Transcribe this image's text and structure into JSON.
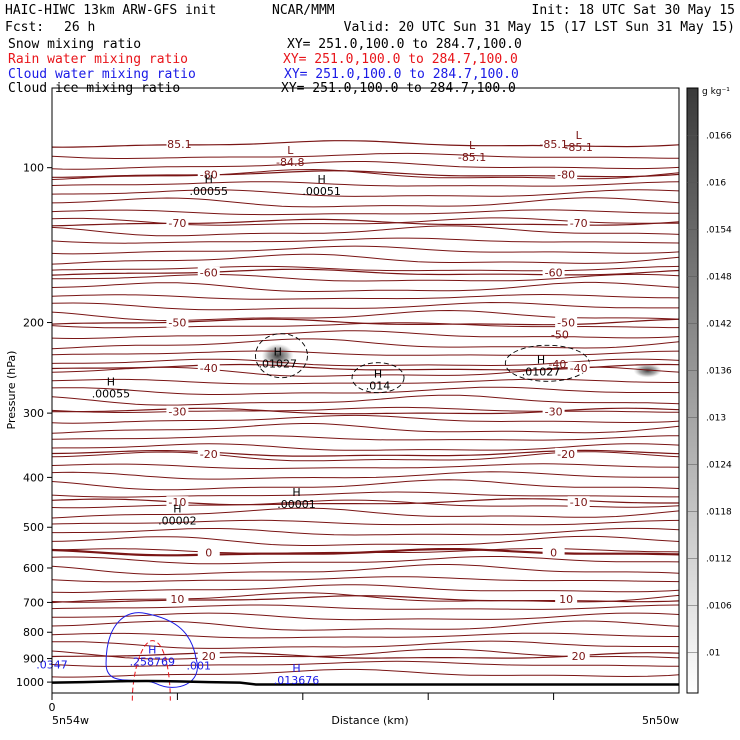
{
  "header": {
    "model_title": "HAIC-HIWC 13km ARW-GFS init",
    "org": "NCAR/MMM",
    "init": "Init: 18 UTC Sat 30 May 15",
    "fcst_label": "Fcst:",
    "fcst_value": "26 h",
    "valid": "Valid: 20 UTC Sun 31 May 15 (17 LST Sun 31 May 15)"
  },
  "fields": [
    {
      "name": "Snow mixing ratio",
      "xy": "XY= 251.0,100.0 to 284.7,100.0",
      "color": "#000000"
    },
    {
      "name": "Rain water mixing ratio",
      "xy": "XY= 251.0,100.0 to 284.7,100.0",
      "color": "#e8141a"
    },
    {
      "name": "Cloud water mixing ratio",
      "xy": "XY= 251.0,100.0 to 284.7,100.0",
      "color": "#1a1ae6"
    },
    {
      "name": "Cloud ice mixing ratio",
      "xy": "XY= 251.0,100.0 to 284.7,100.0",
      "color": "#000000"
    }
  ],
  "colors": {
    "isotherm": "#7a1515",
    "rain": "#e8141a",
    "cloud_water": "#1a1ae6",
    "ice": "#333333",
    "ground": "#000000"
  },
  "chart_data": {
    "type": "cross-section contour",
    "ylabel": "Pressure (hPa)",
    "xlabel": "Distance (km)",
    "y_scale": "log",
    "ylim": [
      1050,
      70
    ],
    "yticks": [
      100,
      200,
      300,
      400,
      500,
      600,
      700,
      800,
      900,
      1000
    ],
    "xlim": [
      0,
      5
    ],
    "xticks": [
      0,
      1,
      2,
      3,
      4
    ],
    "xtick_labels": [
      "0",
      "",
      "",
      "",
      ""
    ],
    "x_endpoints": {
      "left": "5n54w",
      "right": "5n50w"
    },
    "colorbar": {
      "units": "g kg⁻¹",
      "ticks": [
        ".01",
        ".0106",
        ".0112",
        ".0118",
        ".0124",
        ".013",
        ".0136",
        ".0142",
        ".0148",
        ".0154",
        ".016",
        ".0166"
      ],
      "min": 0.0097,
      "max": 0.0172
    },
    "temperature_contours": [
      {
        "label": "-85.1",
        "p": 90
      },
      {
        "label": "-80",
        "p": 103
      },
      {
        "label": "-70",
        "p": 128
      },
      {
        "label": "-60",
        "p": 160
      },
      {
        "label": "-50",
        "p": 200
      },
      {
        "label": "-40",
        "p": 245
      },
      {
        "label": "-30",
        "p": 298
      },
      {
        "label": "-20",
        "p": 360
      },
      {
        "label": "-10",
        "p": 447
      },
      {
        "label": "0",
        "p": 560
      },
      {
        "label": "10",
        "p": 690
      },
      {
        "label": "20",
        "p": 890
      }
    ],
    "extrema_labels": [
      {
        "letter": "L",
        "value": "-84.8",
        "x": 1.9,
        "p": 94,
        "color": "#7a1515"
      },
      {
        "letter": "L",
        "value": "-85.1",
        "x": 3.35,
        "p": 92,
        "color": "#7a1515"
      },
      {
        "letter": "L",
        "value": "-85.1",
        "x": 4.2,
        "p": 88,
        "color": "#7a1515"
      },
      {
        "letter": "H",
        "value": ".00055",
        "x": 1.25,
        "p": 107,
        "color": "#000000"
      },
      {
        "letter": "H",
        "value": ".00051",
        "x": 2.15,
        "p": 107,
        "color": "#000000"
      },
      {
        "letter": "H",
        "value": ".00055",
        "x": 0.47,
        "p": 265,
        "color": "#000000"
      },
      {
        "letter": "H",
        "value": ".01027",
        "x": 1.8,
        "p": 232,
        "color": "#000000"
      },
      {
        "letter": "H",
        "value": ".014",
        "x": 2.6,
        "p": 256,
        "color": "#000000"
      },
      {
        "letter": "H",
        "value": ".01027",
        "x": 3.9,
        "p": 240,
        "color": "#000000"
      },
      {
        "letter": "H",
        "value": ".00001",
        "x": 1.95,
        "p": 435,
        "color": "#000000"
      },
      {
        "letter": "H",
        "value": ".00002",
        "x": 1.0,
        "p": 468,
        "color": "#000000"
      },
      {
        "letter": "H",
        "value": ".258769",
        "x": 0.8,
        "p": 880,
        "color": "#1a1ae6"
      },
      {
        "letter": "H",
        "value": ".013676",
        "x": 1.95,
        "p": 955,
        "color": "#1a1ae6"
      },
      {
        "letter": "",
        "value": ".0347",
        "x": 0.0,
        "p": 940,
        "color": "#1a1ae6"
      },
      {
        "letter": "",
        "value": ".001",
        "x": 1.17,
        "p": 945,
        "color": "#1a1ae6"
      },
      {
        "letter": "",
        "value": "-50",
        "x": 4.05,
        "p": 215,
        "color": "#7a1515"
      },
      {
        "letter": "",
        "value": "-40",
        "x": 4.03,
        "p": 245,
        "color": "#7a1515"
      }
    ]
  }
}
